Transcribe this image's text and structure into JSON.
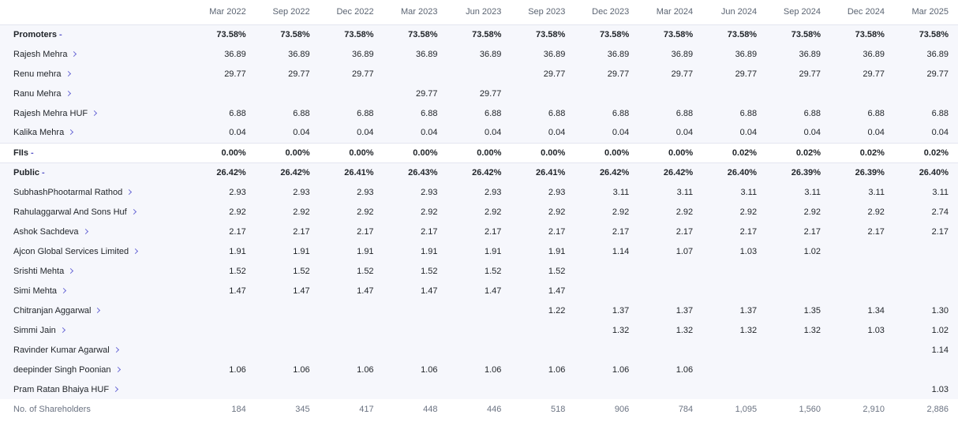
{
  "columns": [
    "Mar 2022",
    "Sep 2022",
    "Dec 2022",
    "Mar 2023",
    "Jun 2023",
    "Sep 2023",
    "Dec 2023",
    "Mar 2024",
    "Jun 2024",
    "Sep 2024",
    "Dec 2024",
    "Mar 2025"
  ],
  "rows": [
    {
      "type": "category",
      "label": "Promoters",
      "toggle": "-",
      "values": [
        "73.58%",
        "73.58%",
        "73.58%",
        "73.58%",
        "73.58%",
        "73.58%",
        "73.58%",
        "73.58%",
        "73.58%",
        "73.58%",
        "73.58%",
        "73.58%"
      ]
    },
    {
      "type": "holder",
      "label": "Rajesh Mehra",
      "values": [
        "36.89",
        "36.89",
        "36.89",
        "36.89",
        "36.89",
        "36.89",
        "36.89",
        "36.89",
        "36.89",
        "36.89",
        "36.89",
        "36.89"
      ]
    },
    {
      "type": "holder",
      "label": "Renu mehra",
      "values": [
        "29.77",
        "29.77",
        "29.77",
        "",
        "",
        "29.77",
        "29.77",
        "29.77",
        "29.77",
        "29.77",
        "29.77",
        "29.77"
      ]
    },
    {
      "type": "holder",
      "label": "Ranu Mehra",
      "values": [
        "",
        "",
        "",
        "29.77",
        "29.77",
        "",
        "",
        "",
        "",
        "",
        "",
        ""
      ]
    },
    {
      "type": "holder",
      "label": "Rajesh Mehra HUF",
      "values": [
        "6.88",
        "6.88",
        "6.88",
        "6.88",
        "6.88",
        "6.88",
        "6.88",
        "6.88",
        "6.88",
        "6.88",
        "6.88",
        "6.88"
      ]
    },
    {
      "type": "holder",
      "label": "Kalika Mehra",
      "values": [
        "0.04",
        "0.04",
        "0.04",
        "0.04",
        "0.04",
        "0.04",
        "0.04",
        "0.04",
        "0.04",
        "0.04",
        "0.04",
        "0.04"
      ]
    },
    {
      "type": "category",
      "label": "FIIs",
      "toggle": "-",
      "values": [
        "0.00%",
        "0.00%",
        "0.00%",
        "0.00%",
        "0.00%",
        "0.00%",
        "0.00%",
        "0.00%",
        "0.02%",
        "0.02%",
        "0.02%",
        "0.02%"
      ]
    },
    {
      "type": "category",
      "label": "Public",
      "toggle": "-",
      "values": [
        "26.42%",
        "26.42%",
        "26.41%",
        "26.43%",
        "26.42%",
        "26.41%",
        "26.42%",
        "26.42%",
        "26.40%",
        "26.39%",
        "26.39%",
        "26.40%"
      ]
    },
    {
      "type": "holder",
      "label": "SubhashPhootarmal Rathod",
      "values": [
        "2.93",
        "2.93",
        "2.93",
        "2.93",
        "2.93",
        "2.93",
        "3.11",
        "3.11",
        "3.11",
        "3.11",
        "3.11",
        "3.11"
      ]
    },
    {
      "type": "holder",
      "label": "Rahulaggarwal And Sons Huf",
      "values": [
        "2.92",
        "2.92",
        "2.92",
        "2.92",
        "2.92",
        "2.92",
        "2.92",
        "2.92",
        "2.92",
        "2.92",
        "2.92",
        "2.74"
      ]
    },
    {
      "type": "holder",
      "label": "Ashok Sachdeva",
      "values": [
        "2.17",
        "2.17",
        "2.17",
        "2.17",
        "2.17",
        "2.17",
        "2.17",
        "2.17",
        "2.17",
        "2.17",
        "2.17",
        "2.17"
      ]
    },
    {
      "type": "holder",
      "label": "Ajcon Global Services Limited",
      "values": [
        "1.91",
        "1.91",
        "1.91",
        "1.91",
        "1.91",
        "1.91",
        "1.14",
        "1.07",
        "1.03",
        "1.02",
        "",
        ""
      ]
    },
    {
      "type": "holder",
      "label": "Srishti Mehta",
      "values": [
        "1.52",
        "1.52",
        "1.52",
        "1.52",
        "1.52",
        "1.52",
        "",
        "",
        "",
        "",
        "",
        ""
      ]
    },
    {
      "type": "holder",
      "label": "Simi Mehta",
      "values": [
        "1.47",
        "1.47",
        "1.47",
        "1.47",
        "1.47",
        "1.47",
        "",
        "",
        "",
        "",
        "",
        ""
      ]
    },
    {
      "type": "holder",
      "label": "Chitranjan Aggarwal",
      "values": [
        "",
        "",
        "",
        "",
        "",
        "1.22",
        "1.37",
        "1.37",
        "1.37",
        "1.35",
        "1.34",
        "1.30"
      ]
    },
    {
      "type": "holder",
      "label": "Simmi Jain",
      "values": [
        "",
        "",
        "",
        "",
        "",
        "",
        "1.32",
        "1.32",
        "1.32",
        "1.32",
        "1.03",
        "1.02"
      ]
    },
    {
      "type": "holder",
      "label": "Ravinder Kumar Agarwal",
      "values": [
        "",
        "",
        "",
        "",
        "",
        "",
        "",
        "",
        "",
        "",
        "",
        "1.14"
      ]
    },
    {
      "type": "holder",
      "label": "deepinder Singh Poonian",
      "values": [
        "1.06",
        "1.06",
        "1.06",
        "1.06",
        "1.06",
        "1.06",
        "1.06",
        "1.06",
        "",
        "",
        "",
        ""
      ]
    },
    {
      "type": "holder",
      "label": "Pram Ratan Bhaiya HUF",
      "values": [
        "",
        "",
        "",
        "",
        "",
        "",
        "",
        "",
        "",
        "",
        "",
        "1.03"
      ]
    }
  ],
  "footer": {
    "label": "No. of Shareholders",
    "values": [
      "184",
      "345",
      "417",
      "448",
      "446",
      "518",
      "906",
      "784",
      "1,095",
      "1,560",
      "2,910",
      "2,886"
    ]
  },
  "colors": {
    "band": "#f6f7fc",
    "accent": "#5a58c9",
    "divider": "#e4e6f0"
  }
}
